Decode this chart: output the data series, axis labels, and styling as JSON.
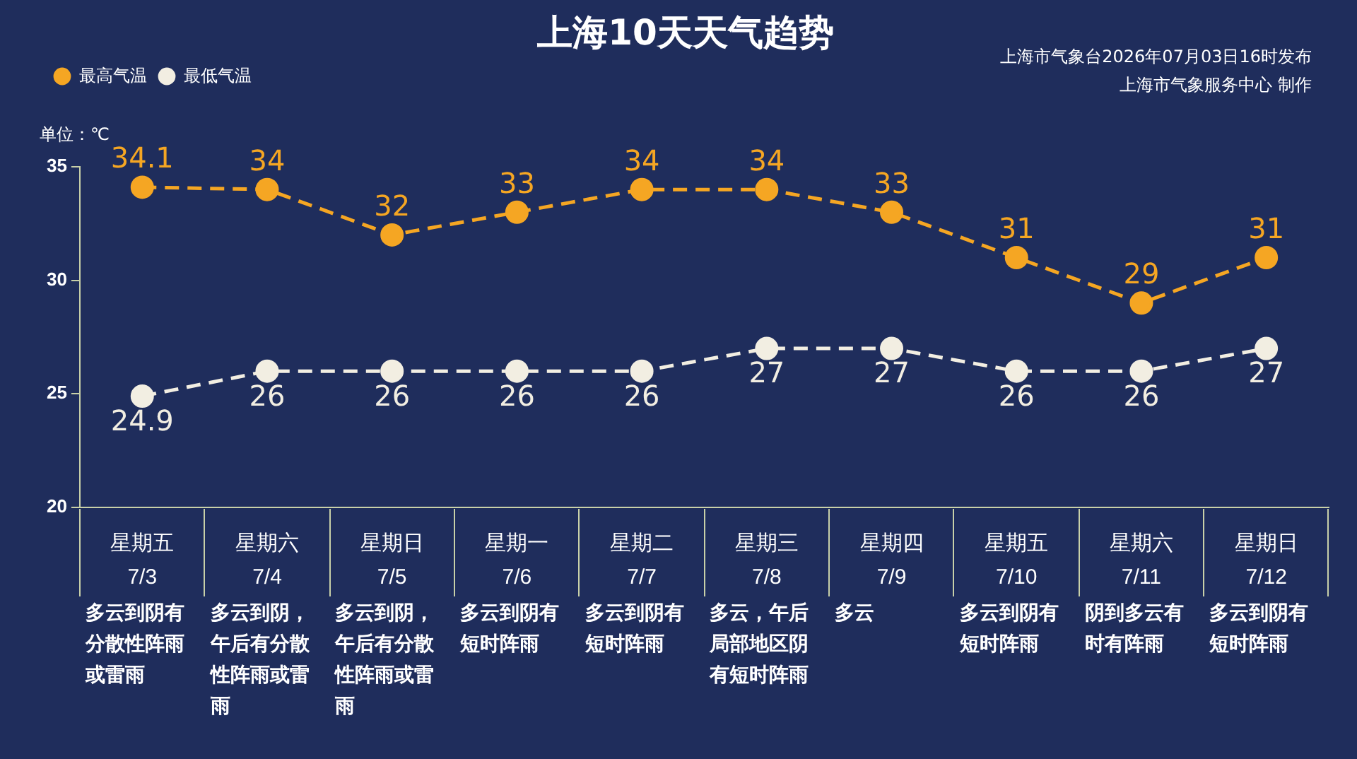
{
  "chart_data": {
    "type": "line",
    "title": "上海10天天气趋势",
    "ylabel": "单位：℃",
    "categories": [
      "星期五\n7/3",
      "星期六\n7/4",
      "星期日\n7/5",
      "星期一\n7/6",
      "星期二\n7/7",
      "星期三\n7/8",
      "星期四\n7/9",
      "星期五\n7/10",
      "星期六\n7/11",
      "星期日\n7/12"
    ],
    "series": [
      {
        "name": "最高气温",
        "color": "#f5a623",
        "values": [
          34.1,
          34,
          32,
          33,
          34,
          34,
          33,
          31,
          29,
          31
        ]
      },
      {
        "name": "最低气温",
        "color": "#f2eee2",
        "values": [
          24.9,
          26,
          26,
          26,
          26,
          27,
          27,
          26,
          26,
          27
        ]
      }
    ],
    "ylim": [
      20,
      35
    ],
    "yticks": [
      20,
      25,
      30,
      35
    ],
    "grid": false,
    "legend": "top left",
    "marker": "circle",
    "line_style": "dashed",
    "data_labels": true,
    "annotations": [
      "多云到阴有分散性阵雨或雷雨",
      "多云到阴，午后有分散性阵雨或雷雨",
      "多云到阴，午后有分散性阵雨或雷雨",
      "多云到阴有短时阵雨",
      "多云到阴有短时阵雨",
      "多云，午后局部地区阴有短时阵雨",
      "多云",
      "多云到阴有短时阵雨",
      "阴到多云有时有阵雨",
      "多云到阴有短时阵雨",
      "上海市气象台2026年07月03日16时发布",
      "上海市气象服务中心 制作"
    ]
  }
}
